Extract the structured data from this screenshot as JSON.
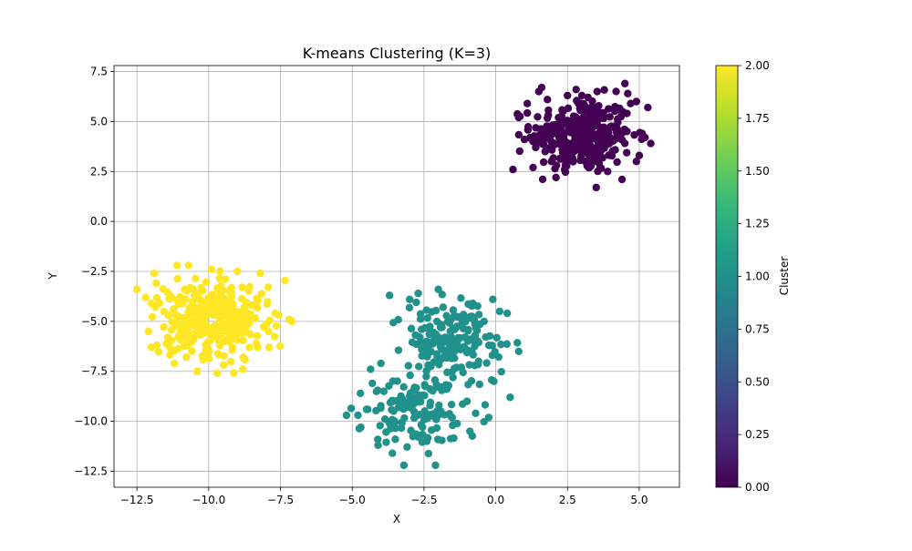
{
  "chart_data": {
    "type": "scatter",
    "title": "K-means Clustering (K=3)",
    "xlabel": "X",
    "ylabel": "Y",
    "xlim": [
      -13.3,
      6.4
    ],
    "ylim": [
      -13.3,
      7.8
    ],
    "x_ticks": [
      -12.5,
      -10.0,
      -7.5,
      -5.0,
      -2.5,
      0.0,
      2.5,
      5.0
    ],
    "x_tick_labels": [
      "−12.5",
      "−10.0",
      "−7.5",
      "−5.0",
      "−2.5",
      "0.0",
      "2.5",
      "5.0"
    ],
    "y_ticks": [
      -12.5,
      -10.0,
      -7.5,
      -5.0,
      -2.5,
      0.0,
      2.5,
      5.0,
      7.5
    ],
    "y_tick_labels": [
      "−12.5",
      "−10.0",
      "−7.5",
      "−5.0",
      "−2.5",
      "0.0",
      "2.5",
      "5.0",
      "7.5"
    ],
    "grid": true,
    "colormap": "viridis",
    "colorbar": {
      "label": "Cluster",
      "range": [
        0.0,
        2.0
      ],
      "ticks": [
        0.0,
        0.25,
        0.5,
        0.75,
        1.0,
        1.25,
        1.5,
        1.75,
        2.0
      ],
      "tick_labels": [
        "0.00",
        "0.25",
        "0.50",
        "0.75",
        "1.00",
        "1.25",
        "1.50",
        "1.75",
        "2.00"
      ],
      "colors": [
        "#440154",
        "#482878",
        "#3e4989",
        "#31688e",
        "#26828e",
        "#1f9e89",
        "#35b779",
        "#6ece58",
        "#b5de2b",
        "#fde725"
      ]
    },
    "clusters": [
      {
        "label": 0,
        "color": "#440154",
        "n_points": 334,
        "extent": {
          "x": [
            0.6,
            5.4
          ],
          "y": [
            1.7,
            6.9
          ]
        },
        "points": [
          [
            0.6,
            2.6
          ],
          [
            1.3,
            2.7
          ],
          [
            1.6,
            6.7
          ],
          [
            1.5,
            6.5
          ],
          [
            1.1,
            5.9
          ],
          [
            1.2,
            4.2
          ],
          [
            1.0,
            4.1
          ],
          [
            1.3,
            4.0
          ],
          [
            0.8,
            5.2
          ],
          [
            1.6,
            4.5
          ],
          [
            1.8,
            6.1
          ],
          [
            2.1,
            2.2
          ],
          [
            2.4,
            2.6
          ],
          [
            2.5,
            6.3
          ],
          [
            2.8,
            6.6
          ],
          [
            3.0,
            6.3
          ],
          [
            3.5,
            1.7
          ],
          [
            3.9,
            2.5
          ],
          [
            4.4,
            2.1
          ],
          [
            4.5,
            6.9
          ],
          [
            4.6,
            6.4
          ],
          [
            4.7,
            5.9
          ],
          [
            4.9,
            3.0
          ],
          [
            5.0,
            3.3
          ],
          [
            5.1,
            4.4
          ],
          [
            5.3,
            5.7
          ],
          [
            5.4,
            3.9
          ],
          [
            5.2,
            4.2
          ],
          [
            4.9,
            6.0
          ],
          [
            2.3,
            4.8
          ],
          [
            2.6,
            3.2
          ],
          [
            3.2,
            2.8
          ],
          [
            3.6,
            2.9
          ]
        ]
      },
      {
        "label": 1,
        "color": "#21918c",
        "n_points": 333,
        "extent": {
          "x": [
            -5.2,
            0.8
          ],
          "y": [
            -12.2,
            -3.4
          ]
        },
        "points": [
          [
            -5.2,
            -9.7
          ],
          [
            -4.7,
            -10.3
          ],
          [
            -4.8,
            -9.7
          ],
          [
            -4.1,
            -11.2
          ],
          [
            -4.0,
            -7.1
          ],
          [
            -3.7,
            -3.7
          ],
          [
            -3.6,
            -11.6
          ],
          [
            -3.2,
            -12.2
          ],
          [
            -2.1,
            -12.2
          ],
          [
            -2.0,
            -3.4
          ],
          [
            -0.8,
            -4.1
          ],
          [
            -0.1,
            -3.9
          ],
          [
            0.4,
            -4.6
          ],
          [
            0.8,
            -6.5
          ],
          [
            0.5,
            -8.8
          ],
          [
            -0.6,
            -7.0
          ],
          [
            -0.9,
            -10.5
          ],
          [
            -1.0,
            -9.0
          ],
          [
            -0.7,
            -9.6
          ],
          [
            -1.5,
            -10.2
          ],
          [
            -3.0,
            -3.9
          ],
          [
            -2.7,
            -3.6
          ],
          [
            -1.2,
            -7.3
          ],
          [
            -3.9,
            -8.5
          ],
          [
            -4.3,
            -8.1
          ],
          [
            -3.5,
            -10.9
          ],
          [
            -2.4,
            -11.0
          ]
        ]
      },
      {
        "label": 2,
        "color": "#fde725",
        "n_points": 333,
        "extent": {
          "x": [
            -12.5,
            -7.1
          ],
          "y": [
            -7.6,
            -2.2
          ]
        },
        "points": [
          [
            -12.5,
            -3.4
          ],
          [
            -12.2,
            -3.8
          ],
          [
            -12.0,
            -4.1
          ],
          [
            -11.9,
            -2.6
          ],
          [
            -11.1,
            -2.2
          ],
          [
            -10.7,
            -2.2
          ],
          [
            -9.9,
            -2.4
          ],
          [
            -12.0,
            -6.3
          ],
          [
            -12.1,
            -5.5
          ],
          [
            -11.4,
            -6.2
          ],
          [
            -11.2,
            -7.1
          ],
          [
            -10.4,
            -7.5
          ],
          [
            -9.7,
            -7.6
          ],
          [
            -8.8,
            -6.8
          ],
          [
            -8.3,
            -6.3
          ],
          [
            -7.9,
            -6.3
          ],
          [
            -7.2,
            -4.9
          ],
          [
            -7.1,
            -5.0
          ],
          [
            -8.2,
            -2.6
          ],
          [
            -9.0,
            -2.5
          ],
          [
            -9.6,
            -4.5
          ],
          [
            -8.6,
            -5.1
          ],
          [
            -10.0,
            -5.4
          ]
        ]
      }
    ]
  }
}
